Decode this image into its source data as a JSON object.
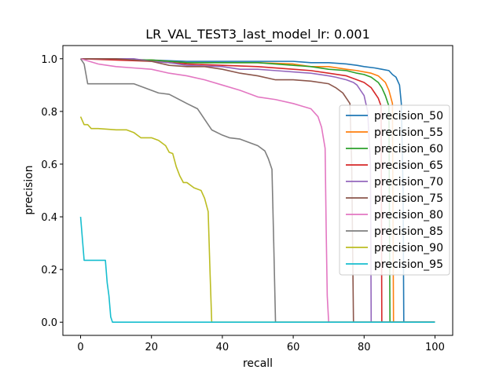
{
  "chart_data": {
    "type": "line",
    "title": "LR_VAL_TEST3_last_model_lr: 0.001",
    "xlabel": "recall",
    "ylabel": "precision",
    "xlim": [
      -5,
      105
    ],
    "ylim": [
      -0.05,
      1.05
    ],
    "x_ticks": [
      0,
      20,
      40,
      60,
      80,
      100
    ],
    "y_ticks": [
      0.0,
      0.2,
      0.4,
      0.6,
      0.8,
      1.0
    ],
    "x_tick_labels": [
      "0",
      "20",
      "40",
      "60",
      "80",
      "100"
    ],
    "y_tick_labels": [
      "0.0",
      "0.2",
      "0.4",
      "0.6",
      "0.8",
      "1.0"
    ],
    "grid": false,
    "legend_position": "center-right",
    "series": [
      {
        "name": "precision_50",
        "color": "#1f77b4",
        "x": [
          0,
          20,
          30,
          40,
          50,
          60,
          65,
          70,
          75,
          78,
          80,
          83,
          85,
          87,
          88,
          89,
          90,
          90.5,
          91,
          91.2,
          92,
          100
        ],
        "y": [
          1.0,
          0.995,
          0.99,
          0.99,
          0.99,
          0.99,
          0.985,
          0.985,
          0.98,
          0.975,
          0.97,
          0.965,
          0.96,
          0.955,
          0.94,
          0.93,
          0.9,
          0.83,
          0.5,
          0.0,
          0.0,
          0.0
        ]
      },
      {
        "name": "precision_55",
        "color": "#ff7f0e",
        "x": [
          0,
          20,
          30,
          40,
          50,
          60,
          65,
          70,
          75,
          78,
          80,
          82,
          84,
          86,
          87,
          88,
          88.3,
          89,
          100
        ],
        "y": [
          1.0,
          0.995,
          0.985,
          0.985,
          0.985,
          0.98,
          0.97,
          0.97,
          0.96,
          0.955,
          0.95,
          0.945,
          0.935,
          0.91,
          0.88,
          0.83,
          0.0,
          0.0,
          0.0
        ]
      },
      {
        "name": "precision_60",
        "color": "#2ca02c",
        "x": [
          0,
          20,
          30,
          40,
          50,
          60,
          65,
          70,
          75,
          78,
          80,
          82,
          84,
          85,
          86,
          87,
          87.3,
          88,
          100
        ],
        "y": [
          1.0,
          0.995,
          0.985,
          0.985,
          0.985,
          0.975,
          0.97,
          0.96,
          0.955,
          0.945,
          0.94,
          0.93,
          0.91,
          0.89,
          0.86,
          0.82,
          0.0,
          0.0,
          0.0
        ]
      },
      {
        "name": "precision_65",
        "color": "#d62728",
        "x": [
          0,
          20,
          25,
          30,
          40,
          50,
          60,
          65,
          70,
          75,
          78,
          80,
          82,
          83,
          84,
          84.8,
          85,
          100
        ],
        "y": [
          1.0,
          0.99,
          0.985,
          0.98,
          0.975,
          0.97,
          0.96,
          0.955,
          0.945,
          0.935,
          0.92,
          0.91,
          0.89,
          0.87,
          0.85,
          0.82,
          0.0,
          0.0
        ]
      },
      {
        "name": "precision_70",
        "color": "#9467bd",
        "x": [
          0,
          15,
          20,
          25,
          30,
          40,
          45,
          50,
          55,
          60,
          65,
          70,
          72,
          75,
          77,
          78,
          79,
          80,
          81,
          81.8,
          82,
          100
        ],
        "y": [
          1.0,
          1.0,
          0.99,
          0.985,
          0.975,
          0.97,
          0.96,
          0.96,
          0.955,
          0.95,
          0.945,
          0.935,
          0.93,
          0.92,
          0.91,
          0.9,
          0.88,
          0.86,
          0.8,
          0.6,
          0.0,
          0.0
        ]
      },
      {
        "name": "precision_75",
        "color": "#8c564b",
        "x": [
          0,
          10,
          20,
          25,
          30,
          35,
          40,
          45,
          50,
          55,
          60,
          65,
          70,
          72,
          74,
          76,
          76.5,
          77,
          100
        ],
        "y": [
          1.0,
          1.0,
          0.99,
          0.975,
          0.97,
          0.97,
          0.96,
          0.945,
          0.935,
          0.92,
          0.92,
          0.915,
          0.905,
          0.89,
          0.87,
          0.83,
          0.6,
          0.0,
          0.0
        ]
      },
      {
        "name": "precision_80",
        "color": "#e377c2",
        "x": [
          0,
          5,
          10,
          15,
          20,
          25,
          30,
          35,
          40,
          45,
          50,
          55,
          60,
          65,
          67,
          68,
          69,
          69.3,
          69.6,
          70,
          100
        ],
        "y": [
          1.0,
          0.98,
          0.97,
          0.965,
          0.96,
          0.945,
          0.935,
          0.92,
          0.9,
          0.88,
          0.855,
          0.845,
          0.83,
          0.81,
          0.78,
          0.74,
          0.66,
          0.35,
          0.1,
          0.0,
          0.0
        ]
      },
      {
        "name": "precision_85",
        "color": "#7f7f7f",
        "x": [
          0,
          1,
          2,
          5,
          10,
          15,
          20,
          22,
          25,
          30,
          33,
          35,
          37,
          40,
          42,
          45,
          47,
          50,
          52,
          53,
          54,
          54.5,
          55,
          100
        ],
        "y": [
          1.0,
          0.98,
          0.905,
          0.905,
          0.905,
          0.905,
          0.88,
          0.87,
          0.865,
          0.83,
          0.81,
          0.77,
          0.73,
          0.71,
          0.7,
          0.695,
          0.685,
          0.67,
          0.65,
          0.62,
          0.58,
          0.3,
          0.0,
          0.0
        ]
      },
      {
        "name": "precision_90",
        "color": "#bcbd22",
        "x": [
          0,
          1,
          2,
          3,
          5,
          10,
          13,
          15,
          17,
          20,
          22,
          24,
          25,
          26,
          27,
          28,
          29,
          30,
          32,
          34,
          35,
          36,
          36.5,
          37,
          100
        ],
        "y": [
          0.78,
          0.75,
          0.75,
          0.735,
          0.735,
          0.73,
          0.73,
          0.72,
          0.7,
          0.7,
          0.69,
          0.67,
          0.645,
          0.64,
          0.59,
          0.555,
          0.53,
          0.53,
          0.51,
          0.5,
          0.47,
          0.42,
          0.2,
          0.0,
          0.0
        ]
      },
      {
        "name": "precision_95",
        "color": "#17becf",
        "x": [
          0,
          1,
          2,
          5,
          7,
          7.5,
          8,
          8.5,
          9,
          100
        ],
        "y": [
          0.4,
          0.235,
          0.235,
          0.235,
          0.235,
          0.15,
          0.1,
          0.02,
          0.0,
          0.0
        ]
      }
    ]
  }
}
